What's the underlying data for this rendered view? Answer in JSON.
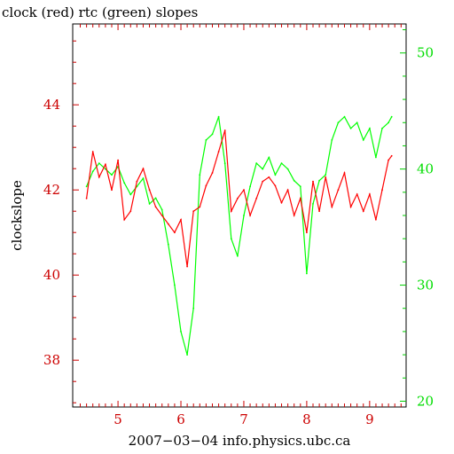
{
  "chart_data": {
    "type": "line",
    "title": "clock (red) rtc (green) slopes",
    "xlabel": "2007−03−04 info.physics.ubc.ca",
    "ylabel": "clockslope",
    "xlim": [
      4.28,
      9.58
    ],
    "ylim_left": [
      36.9,
      45.9
    ],
    "ylim_right": [
      19.5,
      52.5
    ],
    "x_ticks": [
      5,
      6,
      7,
      8,
      9
    ],
    "y_ticks_left": [
      38,
      40,
      42,
      44
    ],
    "y_ticks_right": [
      20,
      30,
      40,
      50
    ],
    "grid": false,
    "colors": {
      "clock": "#ff0000",
      "rtc": "#00ff00",
      "axes": "#000000"
    },
    "series": [
      {
        "name": "clock",
        "axis": "left",
        "color": "#ff0000",
        "x": [
          4.5,
          4.6,
          4.7,
          4.8,
          4.9,
          5.0,
          5.1,
          5.2,
          5.3,
          5.4,
          5.5,
          5.6,
          5.7,
          5.8,
          5.9,
          6.0,
          6.1,
          6.2,
          6.3,
          6.4,
          6.5,
          6.6,
          6.7,
          6.8,
          6.9,
          7.0,
          7.1,
          7.2,
          7.3,
          7.4,
          7.5,
          7.6,
          7.7,
          7.8,
          7.9,
          8.0,
          8.1,
          8.2,
          8.3,
          8.4,
          8.5,
          8.6,
          8.7,
          8.8,
          8.9,
          9.0,
          9.1,
          9.2,
          9.3,
          9.35
        ],
        "values": [
          41.8,
          42.9,
          42.3,
          42.6,
          42.0,
          42.7,
          41.3,
          41.5,
          42.2,
          42.5,
          42.0,
          41.6,
          41.4,
          41.2,
          41.0,
          41.3,
          40.2,
          41.5,
          41.6,
          42.1,
          42.4,
          42.9,
          43.4,
          41.5,
          41.8,
          42.0,
          41.4,
          41.8,
          42.2,
          42.3,
          42.1,
          41.7,
          42.0,
          41.4,
          41.8,
          41.0,
          42.2,
          41.5,
          42.3,
          41.6,
          42.0,
          42.4,
          41.6,
          41.9,
          41.5,
          41.9,
          41.3,
          42.0,
          42.7,
          42.8
        ]
      },
      {
        "name": "rtc",
        "axis": "right",
        "color": "#00ff00",
        "x": [
          4.5,
          4.6,
          4.7,
          4.8,
          4.9,
          5.0,
          5.1,
          5.2,
          5.3,
          5.4,
          5.5,
          5.6,
          5.7,
          5.8,
          5.9,
          6.0,
          6.1,
          6.2,
          6.3,
          6.4,
          6.5,
          6.6,
          6.7,
          6.8,
          6.9,
          7.0,
          7.1,
          7.2,
          7.3,
          7.4,
          7.5,
          7.6,
          7.7,
          7.8,
          7.9,
          8.0,
          8.1,
          8.2,
          8.3,
          8.4,
          8.5,
          8.6,
          8.7,
          8.8,
          8.9,
          9.0,
          9.1,
          9.2,
          9.3,
          9.35
        ],
        "values": [
          38.5,
          39.8,
          40.5,
          40.0,
          39.5,
          40.2,
          38.8,
          37.8,
          38.5,
          39.2,
          37.0,
          37.5,
          36.5,
          33.5,
          30.0,
          26.0,
          24.0,
          28.0,
          39.5,
          42.5,
          43.0,
          44.5,
          40.5,
          34.0,
          32.5,
          36.0,
          38.5,
          40.5,
          40.0,
          41.0,
          39.5,
          40.5,
          40.0,
          39.0,
          38.5,
          31.0,
          37.0,
          39.0,
          39.5,
          42.5,
          44.0,
          44.5,
          43.5,
          44.0,
          42.5,
          43.5,
          41.0,
          43.5,
          44.0,
          44.5
        ]
      }
    ]
  }
}
